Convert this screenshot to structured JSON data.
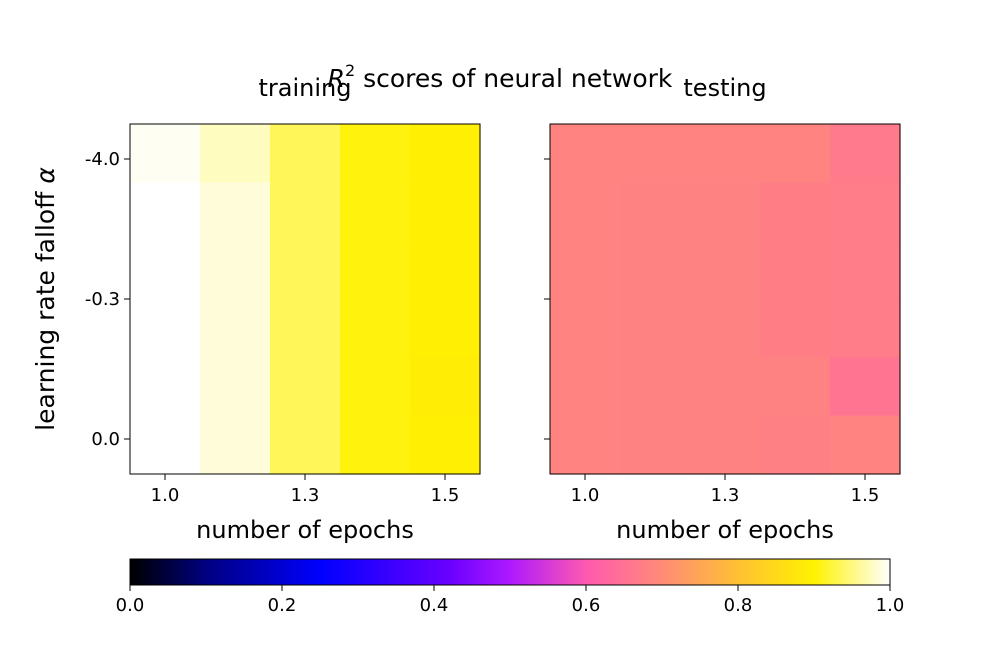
{
  "chart_data": {
    "type": "heatmap",
    "suptitle_prefix": "R",
    "suptitle_sup": "2",
    "suptitle_rest": " scores of neural network",
    "ylabel_prefix": "learning rate falloff ",
    "ylabel_symbol": "α",
    "colormap": "gnuplot2",
    "clim": [
      0.0,
      1.0
    ],
    "colorbar_ticks": [
      "0.0",
      "0.2",
      "0.4",
      "0.6",
      "0.8",
      "1.0"
    ],
    "x_ticks": [
      "1.0",
      "1.3",
      "1.5"
    ],
    "y_ticks": [
      "-4.0",
      "-0.3",
      "0.0"
    ],
    "panels": [
      {
        "title": "training",
        "xlabel": "number of epochs",
        "values": [
          [
            0.995,
            0.975,
            0.935,
            0.905,
            0.895
          ],
          [
            1.0,
            0.985,
            0.935,
            0.905,
            0.895
          ],
          [
            1.0,
            0.985,
            0.935,
            0.905,
            0.895
          ],
          [
            1.0,
            0.985,
            0.935,
            0.905,
            0.895
          ],
          [
            1.0,
            0.985,
            0.935,
            0.905,
            0.89
          ],
          [
            1.0,
            0.985,
            0.935,
            0.905,
            0.895
          ]
        ]
      },
      {
        "title": "testing",
        "xlabel": "number of epochs",
        "values": [
          [
            0.683,
            0.683,
            0.683,
            0.683,
            0.665
          ],
          [
            0.683,
            0.681,
            0.681,
            0.673,
            0.669
          ],
          [
            0.683,
            0.681,
            0.681,
            0.673,
            0.669
          ],
          [
            0.683,
            0.681,
            0.681,
            0.673,
            0.669
          ],
          [
            0.683,
            0.681,
            0.681,
            0.681,
            0.655
          ],
          [
            0.683,
            0.681,
            0.681,
            0.678,
            0.683
          ]
        ]
      }
    ]
  }
}
